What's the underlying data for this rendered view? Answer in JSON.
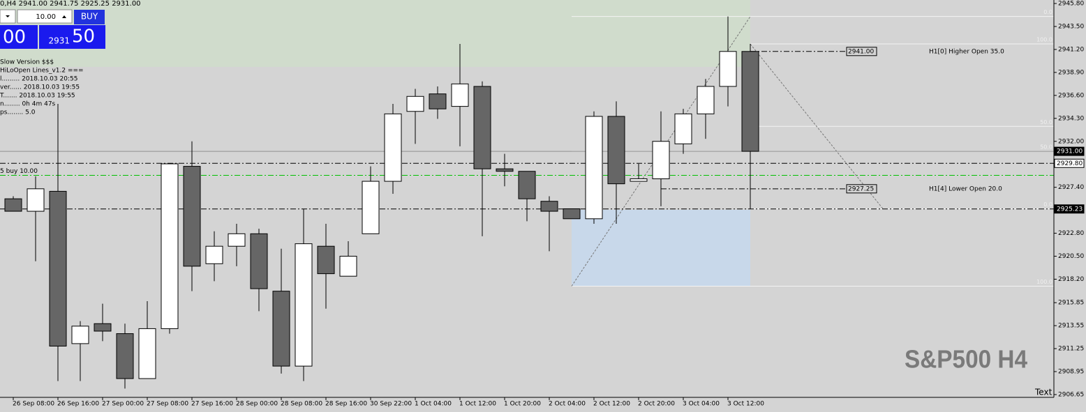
{
  "header": "0,H4  2941.00 2941.75 2925.25 2931.00",
  "trade_panel": {
    "lots": "10.00",
    "buy": "BUY",
    "sell_big": "00",
    "buy_small": "2931",
    "buy_big": "50"
  },
  "indicator_lines": [
    "Slow Version $$$",
    "HiLoOpen Lines_v1.2 ===",
    "l......... 2018.10.03 20:55",
    "ver...... 2018.10.03 19:55",
    "T....... 2018.10.03 19:55",
    "n........ 0h 4m 47s",
    "ps........ 5.0"
  ],
  "chart_data": {
    "type": "candlestick",
    "categories": [
      "26 Sep 08:00",
      null,
      "26 Sep 16:00",
      null,
      "27 Sep 00:00",
      null,
      "27 Sep 08:00",
      null,
      "27 Sep 16:00",
      null,
      "28 Sep 00:00",
      null,
      "28 Sep 08:00",
      null,
      "28 Sep 16:00",
      null,
      "30 Sep 22:00",
      null,
      "1 Oct 04:00",
      null,
      "1 Oct 12:00",
      null,
      "1 Oct 20:00",
      null,
      "2 Oct 04:00",
      null,
      "2 Oct 12:00",
      null,
      "2 Oct 20:00",
      null,
      "3 Oct 04:00",
      null,
      "3 Oct 12:00",
      null
    ],
    "open": [
      2926.25,
      2925,
      2927,
      2911.75,
      2913.75,
      2912.75,
      2908.25,
      2913.25,
      2929.5,
      2919.75,
      2921.5,
      2922.75,
      2917,
      2909.5,
      2921.5,
      2918.5,
      2922.75,
      2928,
      2935,
      2936.75,
      2935.5,
      2937.5,
      2929.25,
      2929,
      2926,
      2925.25,
      2924.25,
      2934.5,
      2928,
      2928.25,
      2931.75,
      2934.75,
      2937.5,
      2941
    ],
    "high": [
      2926.5,
      2928.5,
      2935.75,
      2914,
      2915.75,
      2913.75,
      2916,
      2929.75,
      2932,
      2923,
      2923.75,
      2923.25,
      2921.25,
      2925.25,
      2923.75,
      2922,
      2929.5,
      2935.75,
      2937.25,
      2937.5,
      2941.75,
      2938,
      2930.75,
      2929,
      2926.5,
      2925.25,
      2935,
      2936,
      2929.75,
      2935,
      2935.25,
      2938.25,
      2944.5,
      2941.75
    ],
    "low": [
      2925,
      2920,
      2908,
      2908,
      2912,
      2907.25,
      2908.25,
      2912.75,
      2917,
      2918,
      2919.5,
      2915,
      2908.75,
      2908,
      2915.25,
      2918.5,
      2922.75,
      2926.75,
      2931.75,
      2934.25,
      2931.5,
      2922.5,
      2927.5,
      2924,
      2921,
      2924.25,
      2923.75,
      2923.75,
      2928,
      2925.5,
      2930.75,
      2932.25,
      2935.5,
      2925.25
    ],
    "close": [
      2925,
      2927.25,
      2911.5,
      2913.5,
      2913,
      2908.25,
      2913.25,
      2929.75,
      2919.5,
      2921.5,
      2922.75,
      2917.25,
      2909.5,
      2921.75,
      2918.75,
      2920.5,
      2928,
      2934.75,
      2936.5,
      2935.25,
      2937.75,
      2929.25,
      2929,
      2926.25,
      2925,
      2924.25,
      2934.5,
      2927.75,
      2928.25,
      2932,
      2934.75,
      2937.5,
      2941,
      2931
    ],
    "up_color": "#ffffff",
    "down_color": "#666666",
    "ylim": [
      2906.37,
      2946.15
    ],
    "yticks": [
      {
        "value": 2945.8,
        "label": "2945.80"
      },
      {
        "value": 2943.5,
        "label": "2943.50"
      },
      {
        "value": 2941.2,
        "label": "2941.20"
      },
      {
        "value": 2938.9,
        "label": "2938.90"
      },
      {
        "value": 2936.6,
        "label": "2936.60"
      },
      {
        "value": 2934.3,
        "label": "2934.30"
      },
      {
        "value": 2932,
        "label": "2932.00"
      },
      {
        "value": 2927.4,
        "label": "2927.40"
      },
      {
        "value": 2922.8,
        "label": "2922.80"
      },
      {
        "value": 2920.5,
        "label": "2920.50"
      },
      {
        "value": 2918.2,
        "label": "2918.20"
      },
      {
        "value": 2915.85,
        "label": "2915.85"
      },
      {
        "value": 2913.55,
        "label": "2913.55"
      },
      {
        "value": 2911.25,
        "label": "2911.25"
      },
      {
        "value": 2908.95,
        "label": "2908.95"
      },
      {
        "value": 2906.65,
        "label": "2906.65"
      }
    ],
    "grid": false,
    "price_markers": [
      {
        "value": 2931,
        "label": "2931.00",
        "style": "solid",
        "color": "#909090",
        "box": "#000000"
      },
      {
        "value": 2929.8,
        "label": "2929.80",
        "style": "dashdot",
        "color": "#000000",
        "box": "#ffffff"
      },
      {
        "value": 2925.23,
        "label": "2925.23",
        "style": "dashdot",
        "color": "#000000",
        "box": "#000000"
      }
    ],
    "order_line": {
      "value": 2928.6,
      "label": "5 buy 10.00",
      "color": "#00c000"
    },
    "h1_levels": [
      {
        "value": 2941,
        "label": "2941.00",
        "text": "H1[0] Higher Open 35.0"
      },
      {
        "value": 2927.25,
        "label": "2927.25",
        "text": "H1[4] Lower Open 20.0"
      }
    ],
    "fibs": [
      {
        "from": 2944.5,
        "to": 2917.5,
        "levels": [
          {
            "value": 0,
            "label": "0.0"
          },
          {
            "value": 50,
            "label": "50.0"
          },
          {
            "value": 100,
            "label": "100.0"
          }
        ]
      },
      {
        "from": 2925.25,
        "to": 2941.75,
        "levels": [
          {
            "value": 0,
            "label": "0.0"
          },
          {
            "value": 50,
            "label": "50.0"
          },
          {
            "value": 100,
            "label": "100.0"
          }
        ]
      }
    ],
    "watermark": "S&P500 H4",
    "corner_text": "Text"
  }
}
